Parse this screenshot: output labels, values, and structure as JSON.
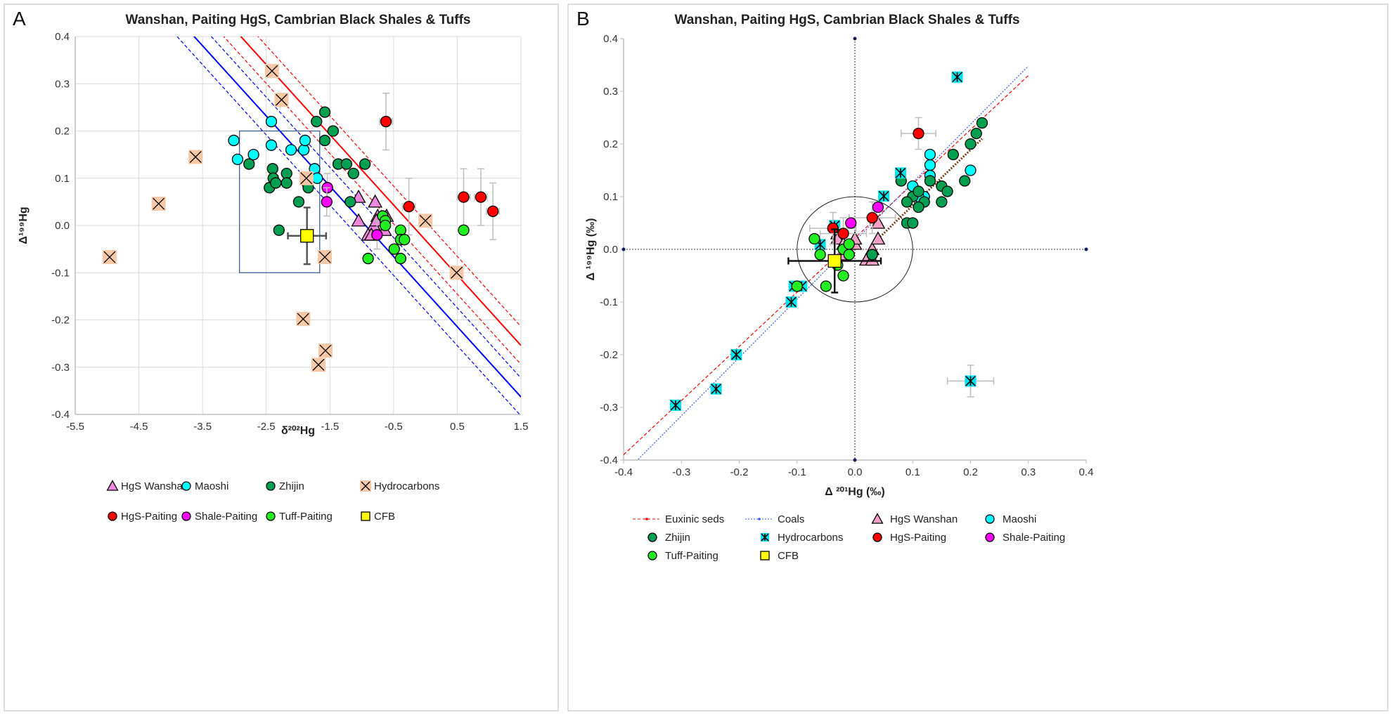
{
  "chart_data": [
    {
      "type": "scatter",
      "panel_label": "A",
      "title": "Wanshan, Paiting HgS, Cambrian Black Shales & Tuffs",
      "xlabel": "δ²⁰²Hg",
      "ylabel": "Δ¹⁹⁹Hg",
      "xlim": [
        -5.5,
        1.5
      ],
      "ylim": [
        -0.4,
        0.4
      ],
      "xticks": [
        "-5.5",
        "-4.5",
        "-3.5",
        "-2.5",
        "-1.5",
        "-0.5",
        "0.5",
        "1.5"
      ],
      "yticks": [
        "-0.4",
        "-0.3",
        "-0.2",
        "-0.1",
        "0.0",
        "0.1",
        "0.2",
        "0.3",
        "0.4"
      ],
      "grid": true,
      "legend_position": "bottom",
      "series": [
        {
          "name": "HgS Wanshan",
          "marker": "triangle",
          "color": "#ee88dd",
          "points": [
            [
              -1.05,
              0.06
            ],
            [
              -0.79,
              0.05
            ],
            [
              -0.75,
              0.02
            ],
            [
              -0.61,
              0.02
            ],
            [
              -1.05,
              0.01
            ],
            [
              -0.81,
              0.0
            ],
            [
              -0.64,
              -0.01
            ],
            [
              -0.9,
              -0.02
            ],
            [
              -0.85,
              -0.02
            ],
            [
              -0.77,
              0.01
            ]
          ]
        },
        {
          "name": "Maoshi",
          "marker": "circle",
          "color": "#00ffff",
          "points": [
            [
              -3.01,
              0.18
            ],
            [
              -2.95,
              0.14
            ],
            [
              -2.7,
              0.15
            ],
            [
              -2.42,
              0.22
            ],
            [
              -2.42,
              0.17
            ],
            [
              -2.11,
              0.16
            ],
            [
              -1.91,
              0.16
            ],
            [
              -1.89,
              0.18
            ],
            [
              -1.74,
              0.12
            ],
            [
              -1.7,
              0.1
            ]
          ]
        },
        {
          "name": "Zhijin",
          "marker": "circle",
          "color": "#00a050",
          "points": [
            [
              -2.77,
              0.13
            ],
            [
              -2.45,
              0.08
            ],
            [
              -2.4,
              0.12
            ],
            [
              -2.39,
              0.1
            ],
            [
              -2.35,
              0.09
            ],
            [
              -2.18,
              0.11
            ],
            [
              -2.18,
              0.09
            ],
            [
              -1.86,
              0.09
            ],
            [
              -1.84,
              0.08
            ],
            [
              -1.99,
              0.05
            ],
            [
              -2.3,
              -0.01
            ],
            [
              -1.71,
              0.22
            ],
            [
              -1.58,
              0.24
            ],
            [
              -1.45,
              0.2
            ],
            [
              -1.58,
              0.18
            ],
            [
              -1.37,
              0.13
            ],
            [
              -1.24,
              0.13
            ],
            [
              -1.13,
              0.11
            ],
            [
              -0.95,
              0.13
            ],
            [
              -1.18,
              0.05
            ]
          ]
        },
        {
          "name": "Hydrocarbons",
          "marker": "xbox",
          "color": "#f5c8a8",
          "points": [
            [
              -2.41,
              0.327
            ],
            [
              -2.26,
              0.266
            ],
            [
              -3.61,
              0.145
            ],
            [
              -4.19,
              0.046
            ],
            [
              -4.96,
              -0.067
            ],
            [
              -1.87,
              0.1
            ],
            [
              -1.58,
              -0.067
            ],
            [
              -1.92,
              -0.198
            ],
            [
              -1.57,
              -0.265
            ],
            [
              -1.68,
              -0.295
            ],
            [
              0.0,
              0.01
            ],
            [
              0.49,
              -0.1
            ]
          ]
        },
        {
          "name": "HgS-Paiting",
          "marker": "circle",
          "color": "#ff0000",
          "points": [
            [
              -0.62,
              0.22
            ],
            [
              -0.26,
              0.04
            ],
            [
              0.6,
              0.06
            ],
            [
              0.87,
              0.06
            ],
            [
              1.06,
              0.03
            ]
          ],
          "errors": [
            [
              0.1,
              0.06
            ],
            [
              0.1,
              0.06
            ],
            [
              0.1,
              0.06
            ],
            [
              0.1,
              0.06
            ],
            [
              0.1,
              0.06
            ]
          ]
        },
        {
          "name": "Shale-Paiting",
          "marker": "circle",
          "color": "#ff00ff",
          "points": [
            [
              -1.54,
              0.08
            ],
            [
              -1.55,
              0.05
            ],
            [
              -0.76,
              -0.02
            ]
          ],
          "errors": [
            [
              0,
              0.03
            ],
            [
              0,
              0.03
            ],
            [
              0,
              0.03
            ]
          ]
        },
        {
          "name": "Tuff-Paiting",
          "marker": "circle",
          "color": "#22ee22",
          "points": [
            [
              -0.67,
              0.02
            ],
            [
              -0.63,
              0.01
            ],
            [
              -0.63,
              0.0
            ],
            [
              -0.39,
              -0.01
            ],
            [
              -0.39,
              -0.03
            ],
            [
              -0.33,
              -0.03
            ],
            [
              -0.49,
              -0.05
            ],
            [
              -0.39,
              -0.07
            ],
            [
              -0.9,
              -0.07
            ],
            [
              0.6,
              -0.01
            ]
          ]
        },
        {
          "name": "CFB",
          "marker": "square",
          "color": "#ffff00",
          "points": [
            [
              -1.86,
              -0.022
            ]
          ],
          "errors": [
            [
              0.3,
              0.06
            ]
          ],
          "error_color": "#555555"
        }
      ],
      "lines": [
        {
          "slope": -0.1487,
          "intercept": -0.14,
          "color": "#0000ff",
          "style": "solid"
        },
        {
          "slope": -0.1487,
          "intercept": -0.1,
          "color": "#0000ff",
          "style": "dashed"
        },
        {
          "slope": -0.1487,
          "intercept": -0.18,
          "color": "#0000ff",
          "style": "dashed"
        },
        {
          "slope": -0.1487,
          "intercept": -0.031,
          "color": "#ff0000",
          "style": "solid"
        },
        {
          "slope": -0.1487,
          "intercept": 0.009,
          "color": "#ff0000",
          "style": "dashed"
        },
        {
          "slope": -0.1487,
          "intercept": -0.071,
          "color": "#ff0000",
          "style": "dashed"
        }
      ],
      "box": {
        "x": [
          -2.92,
          -1.66
        ],
        "y": [
          -0.1,
          0.2
        ],
        "color": "#2f5597"
      }
    },
    {
      "type": "scatter",
      "panel_label": "B",
      "title": "Wanshan, Paiting HgS, Cambrian Black Shales & Tuffs",
      "xlabel": "Δ ²⁰¹Hg (‰)",
      "ylabel": "Δ ¹⁹⁹Hg (‰)",
      "xlim": [
        -0.4,
        0.4
      ],
      "ylim": [
        -0.4,
        0.4
      ],
      "xticks": [
        "-0.4",
        "-0.3",
        "-0.2",
        "-0.1",
        "0.0",
        "0.1",
        "0.2",
        "0.3",
        "0.4"
      ],
      "yticks": [
        "-0.4",
        "-0.3",
        "-0.2",
        "-0.1",
        "0.0",
        "0.1",
        "0.2",
        "0.3",
        "0.4"
      ],
      "grid": false,
      "legend_position": "bottom",
      "series": [
        {
          "name": "HgS Wanshan",
          "marker": "triangle",
          "color": "#f4a0c8",
          "points": [
            [
              -0.03,
              0.03
            ],
            [
              -0.03,
              0.02
            ],
            [
              -0.02,
              0.01
            ],
            [
              0.0,
              0.01
            ],
            [
              0.0,
              0.02
            ],
            [
              0.03,
              0.0
            ],
            [
              0.04,
              0.02
            ],
            [
              0.04,
              0.05
            ],
            [
              0.02,
              -0.02
            ],
            [
              0.03,
              -0.02
            ],
            [
              -0.02,
              -0.01
            ]
          ]
        },
        {
          "name": "Maoshi",
          "marker": "circle",
          "color": "#00ffff",
          "points": [
            [
              0.13,
              0.18
            ],
            [
              0.13,
              0.16
            ],
            [
              0.13,
              0.14
            ],
            [
              0.2,
              0.15
            ],
            [
              0.1,
              0.12
            ],
            [
              0.12,
              0.1
            ],
            [
              0.11,
              0.1
            ]
          ]
        },
        {
          "name": "Zhijin",
          "marker": "circle",
          "color": "#00a050",
          "points": [
            [
              0.08,
              0.13
            ],
            [
              0.1,
              0.1
            ],
            [
              0.11,
              0.11
            ],
            [
              0.12,
              0.09
            ],
            [
              0.11,
              0.08
            ],
            [
              0.13,
              0.13
            ],
            [
              0.15,
              0.12
            ],
            [
              0.16,
              0.11
            ],
            [
              0.15,
              0.09
            ],
            [
              0.17,
              0.18
            ],
            [
              0.19,
              0.13
            ],
            [
              0.2,
              0.2
            ],
            [
              0.21,
              0.22
            ],
            [
              0.22,
              0.24
            ],
            [
              0.09,
              0.05
            ],
            [
              0.1,
              0.05
            ],
            [
              0.09,
              0.09
            ],
            [
              0.03,
              -0.01
            ]
          ]
        },
        {
          "name": "Hydrocarbons",
          "marker": "asterisk",
          "color": "#00e5ee",
          "points": [
            [
              0.177,
              0.327
            ],
            [
              -0.11,
              -0.1
            ],
            [
              -0.105,
              -0.07
            ],
            [
              -0.092,
              -0.07
            ],
            [
              -0.205,
              -0.2
            ],
            [
              -0.24,
              -0.265
            ],
            [
              -0.31,
              -0.296
            ],
            [
              0.2,
              -0.25
            ],
            [
              0.079,
              0.145
            ],
            [
              0.05,
              0.101
            ],
            [
              -0.035,
              0.045
            ],
            [
              -0.06,
              0.009
            ]
          ],
          "errors": [
            [
              0,
              0
            ],
            [
              0,
              0
            ],
            [
              0,
              0
            ],
            [
              0,
              0
            ],
            [
              0,
              0
            ],
            [
              0,
              0
            ],
            [
              0,
              0
            ],
            [
              0.04,
              0.03
            ],
            [
              0,
              0
            ],
            [
              0,
              0
            ],
            [
              0,
              0
            ],
            [
              0,
              0
            ]
          ]
        },
        {
          "name": "HgS-Paiting",
          "marker": "circle",
          "color": "#ff0000",
          "points": [
            [
              0.11,
              0.22
            ],
            [
              -0.038,
              0.04
            ],
            [
              -0.02,
              0.03
            ],
            [
              0.03,
              0.06
            ]
          ],
          "errors": [
            [
              0.03,
              0.03
            ],
            [
              0.04,
              0.03
            ],
            [
              0.04,
              0.03
            ],
            [
              0.04,
              0.03
            ]
          ]
        },
        {
          "name": "Shale-Paiting",
          "marker": "circle",
          "color": "#ff00ff",
          "points": [
            [
              -0.007,
              0.05
            ],
            [
              0.04,
              0.08
            ]
          ]
        },
        {
          "name": "Tuff-Paiting",
          "marker": "circle",
          "color": "#22ee22",
          "points": [
            [
              -0.07,
              0.02
            ],
            [
              -0.06,
              -0.01
            ],
            [
              -0.02,
              0.0
            ],
            [
              -0.02,
              -0.05
            ],
            [
              -0.01,
              -0.01
            ],
            [
              -0.01,
              0.01
            ],
            [
              -0.03,
              -0.03
            ],
            [
              -0.05,
              -0.07
            ],
            [
              -0.1,
              -0.07
            ]
          ]
        },
        {
          "name": "CFB",
          "marker": "square",
          "color": "#ffff00",
          "points": [
            [
              -0.035,
              -0.022
            ]
          ],
          "errors": [
            [
              0.08,
              0.06
            ]
          ],
          "error_color": "#111111"
        }
      ],
      "lines": [
        {
          "name": "Euxinic seds",
          "from": [
            -0.4,
            -0.39
          ],
          "to": [
            0.3,
            0.33
          ],
          "color": "#ff0000",
          "style": "dashed"
        },
        {
          "name": "Coals",
          "from": [
            -0.385,
            -0.41
          ],
          "to": [
            0.3,
            0.348
          ],
          "color": "#3355ff",
          "style": "dotted"
        },
        {
          "from": [
            0.04,
            0.02
          ],
          "to": [
            0.22,
            0.21
          ],
          "color": "#7a3b10",
          "style": "dotted"
        }
      ],
      "circle": {
        "center": [
          0,
          0
        ],
        "radius": 0.1
      },
      "legend_order": [
        "Euxinic seds",
        "Coals",
        "HgS Wanshan",
        "Maoshi",
        "Zhijin",
        "Hydrocarbons",
        "HgS-Paiting",
        "Shale-Paiting",
        "Tuff-Paiting",
        "CFB"
      ]
    }
  ]
}
